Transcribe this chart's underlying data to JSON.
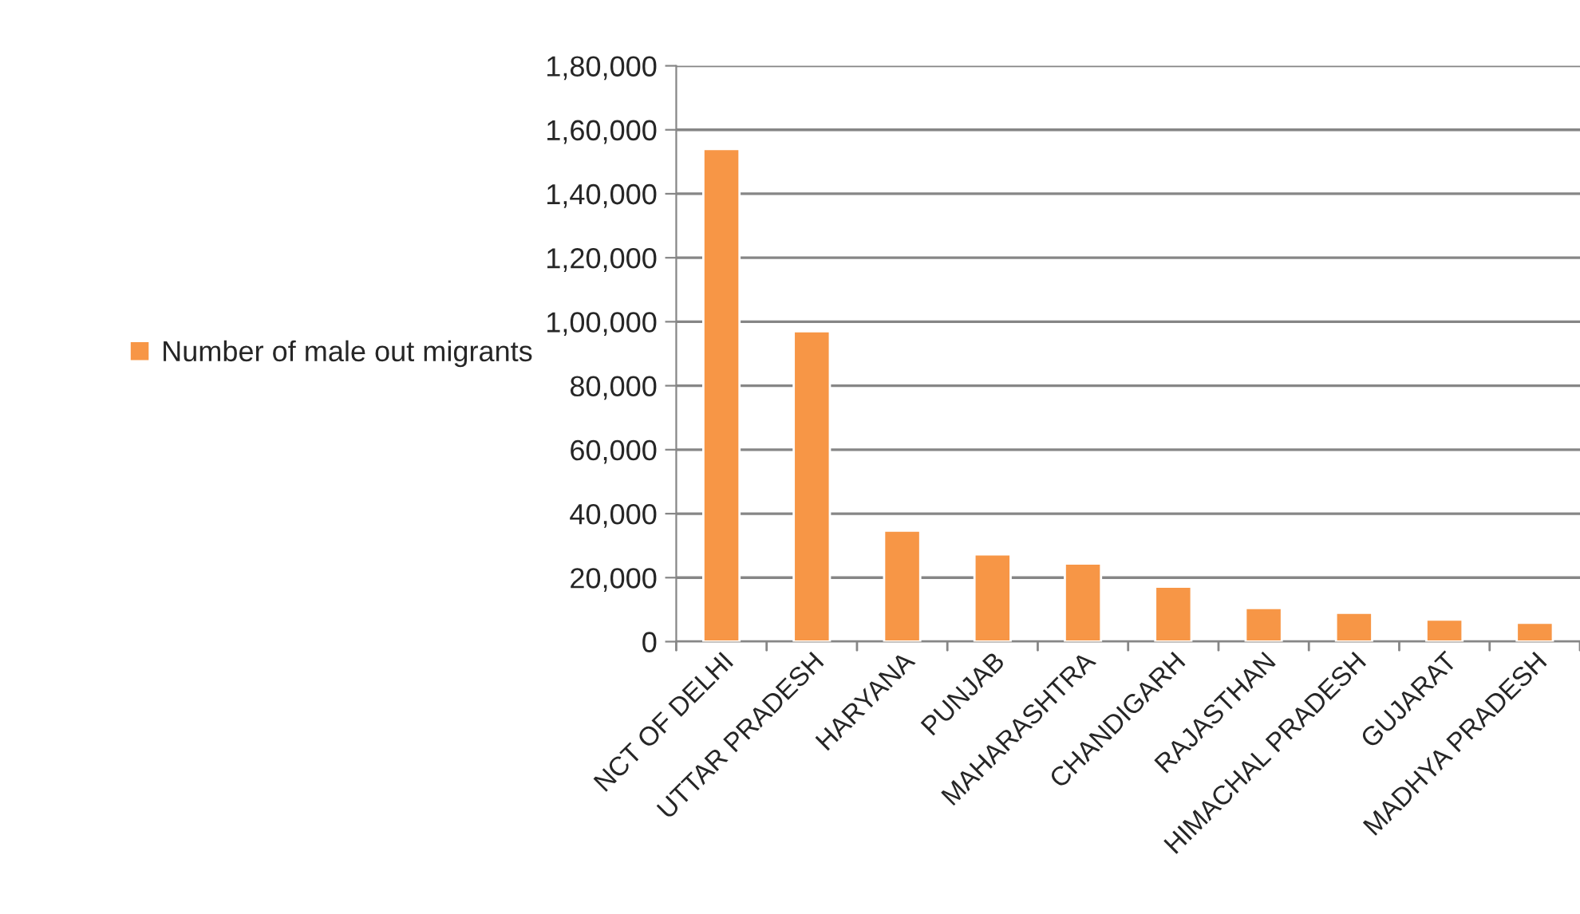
{
  "chart_data": {
    "type": "bar",
    "categories": [
      "NCT OF DELHI",
      "UTTAR PRADESH",
      "HARYANA",
      "PUNJAB",
      "MAHARASHTRA",
      "CHANDIGARH",
      "RAJASTHAN",
      "HIMACHAL PRADESH",
      "GUJARAT",
      "MADHYA PRADESH"
    ],
    "series": [
      {
        "name": "Number of male out migrants",
        "color": "#f79646",
        "values": [
          154000,
          97000,
          34700,
          27300,
          24400,
          17200,
          10500,
          9000,
          6900,
          5900
        ]
      }
    ],
    "ylim": [
      0,
      180000
    ],
    "yticks": [
      0,
      {
        "value": 20000,
        "label": "20,000"
      },
      {
        "value": 40000,
        "label": "40,000"
      },
      {
        "value": 60000,
        "label": "60,000"
      },
      {
        "value": 80000,
        "label": "80,000"
      },
      {
        "value": 100000,
        "label": "1,00,000"
      },
      {
        "value": 120000,
        "label": "1,20,000"
      },
      {
        "value": 140000,
        "label": "1,40,000"
      },
      {
        "value": 160000,
        "label": "1,60,000"
      },
      {
        "value": 180000,
        "label": "1,80,000"
      }
    ],
    "grid": "y",
    "legend": "left"
  }
}
